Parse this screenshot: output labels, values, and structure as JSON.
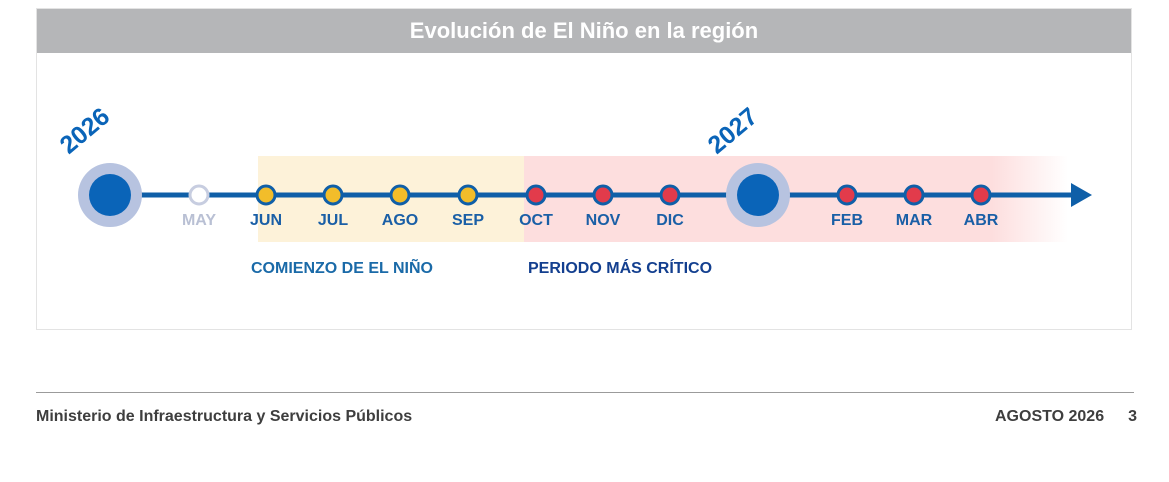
{
  "header": {
    "title": "Evolución de El Niño en la región"
  },
  "timeline": {
    "years": [
      {
        "label": "2026"
      },
      {
        "label": "2027"
      }
    ],
    "months": [
      {
        "label": "MAY",
        "phase": "inactive"
      },
      {
        "label": "JUN",
        "phase": "onset"
      },
      {
        "label": "JUL",
        "phase": "onset"
      },
      {
        "label": "AGO",
        "phase": "onset"
      },
      {
        "label": "SEP",
        "phase": "onset"
      },
      {
        "label": "OCT",
        "phase": "critical"
      },
      {
        "label": "NOV",
        "phase": "critical"
      },
      {
        "label": "DIC",
        "phase": "critical"
      },
      {
        "label": "FEB",
        "phase": "critical"
      },
      {
        "label": "MAR",
        "phase": "critical"
      },
      {
        "label": "ABR",
        "phase": "critical"
      }
    ],
    "phases": {
      "onset_label": "COMIENZO DE EL NIÑO",
      "critical_label": "PERIODO MÁS CRÍTICO"
    },
    "colors": {
      "line": "#0f5fa8",
      "year_dot": "#0a64b8",
      "year_halo": "#b7c3e0",
      "inactive_dot": "#c7cde0",
      "inactive_text": "#b9c0d4",
      "onset_dot": "#f2bd2a",
      "critical_dot": "#e23b4b",
      "month_text": "#1a5fa6",
      "onset_band": "#fdf2d9",
      "critical_band": "#fddede",
      "onset_label_color": "#1a6aa8",
      "critical_label_color": "#133f8f"
    }
  },
  "footer": {
    "org": "Ministerio de Infraestructura y Servicios Públicos",
    "date": "AGOSTO 2026",
    "page": "3"
  }
}
